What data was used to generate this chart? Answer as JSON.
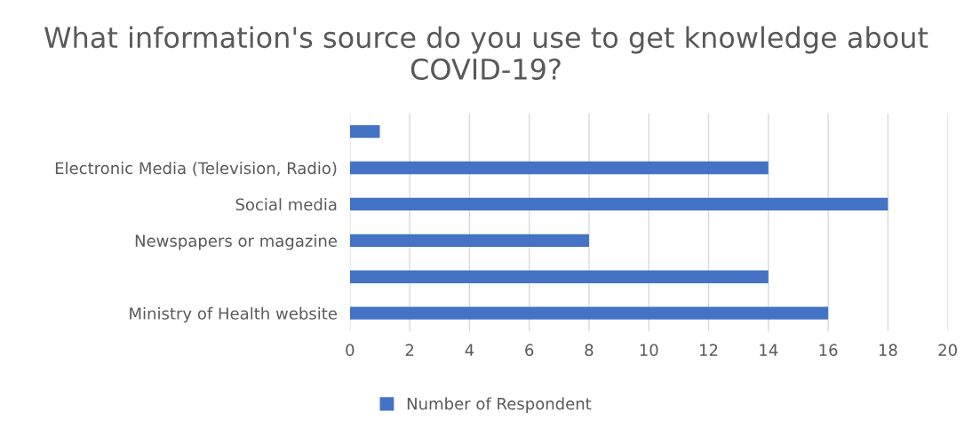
{
  "chart_data": {
    "type": "bar",
    "orientation": "horizontal",
    "title": "What information's source do you use to get knowledge about COVID-19?",
    "categories": [
      null,
      "Electronic Media (Television, Radio)",
      "Social media",
      "Newspapers or magazine",
      null,
      "Ministry of Health website"
    ],
    "series": [
      {
        "name": "Number of Respondent",
        "color": "#4472c4",
        "values": [
          1,
          14,
          18,
          8,
          14,
          16
        ]
      }
    ],
    "xlim": [
      0,
      20
    ],
    "xticks": [
      0,
      2,
      4,
      6,
      8,
      10,
      12,
      14,
      16,
      18,
      20
    ],
    "grid": "x",
    "legend": "bottom"
  }
}
